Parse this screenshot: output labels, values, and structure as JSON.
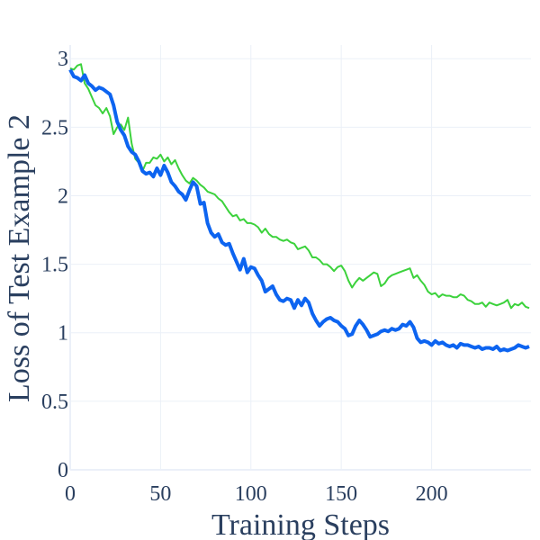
{
  "chart_data": {
    "type": "line",
    "title": "",
    "xlabel": "Training Steps",
    "ylabel": "Loss of Test Example 2",
    "xlim": [
      0,
      255
    ],
    "ylim": [
      0,
      3.1
    ],
    "xticks": [
      0,
      50,
      100,
      150,
      200
    ],
    "xtick_labels": [
      "0",
      "50",
      "100",
      "150",
      "200"
    ],
    "yticks": [
      0,
      0.5,
      1,
      1.5,
      2,
      2.5,
      3
    ],
    "ytick_labels": [
      "0",
      "0.5",
      "1",
      "1.5",
      "2",
      "2.5",
      "3"
    ],
    "grid": true,
    "series": [
      {
        "name": "green",
        "color": "#3cd23c",
        "x": [
          0,
          2,
          4,
          6,
          8,
          10,
          12,
          14,
          16,
          18,
          20,
          22,
          24,
          26,
          28,
          30,
          32,
          34,
          36,
          38,
          40,
          42,
          44,
          46,
          48,
          50,
          52,
          54,
          56,
          58,
          60,
          62,
          64,
          66,
          68,
          70,
          72,
          74,
          76,
          78,
          80,
          82,
          84,
          86,
          88,
          90,
          92,
          94,
          96,
          98,
          100,
          102,
          104,
          106,
          108,
          110,
          112,
          114,
          116,
          118,
          120,
          122,
          124,
          126,
          128,
          130,
          132,
          134,
          136,
          138,
          140,
          142,
          144,
          146,
          148,
          150,
          152,
          154,
          156,
          158,
          160,
          162,
          164,
          166,
          168,
          170,
          172,
          174,
          176,
          178,
          180,
          182,
          184,
          186,
          188,
          190,
          192,
          194,
          196,
          198,
          200,
          202,
          204,
          206,
          208,
          210,
          212,
          214,
          216,
          218,
          220,
          222,
          224,
          226,
          228,
          230,
          232,
          234,
          236,
          238,
          240,
          242,
          244,
          246,
          248,
          250,
          252,
          254
        ],
        "values": [
          2.93,
          2.92,
          2.95,
          2.96,
          2.82,
          2.78,
          2.72,
          2.66,
          2.64,
          2.6,
          2.64,
          2.58,
          2.45,
          2.5,
          2.52,
          2.48,
          2.57,
          2.38,
          2.27,
          2.24,
          2.18,
          2.24,
          2.24,
          2.28,
          2.27,
          2.3,
          2.25,
          2.28,
          2.23,
          2.26,
          2.2,
          2.15,
          2.11,
          2.09,
          2.13,
          2.11,
          2.08,
          2.06,
          2.03,
          2.02,
          2.01,
          1.98,
          1.96,
          1.92,
          1.88,
          1.85,
          1.86,
          1.82,
          1.83,
          1.8,
          1.8,
          1.79,
          1.77,
          1.73,
          1.76,
          1.72,
          1.7,
          1.7,
          1.68,
          1.67,
          1.68,
          1.66,
          1.65,
          1.61,
          1.62,
          1.63,
          1.6,
          1.55,
          1.55,
          1.53,
          1.5,
          1.5,
          1.48,
          1.45,
          1.48,
          1.49,
          1.45,
          1.38,
          1.33,
          1.37,
          1.4,
          1.38,
          1.4,
          1.42,
          1.44,
          1.43,
          1.34,
          1.36,
          1.4,
          1.42,
          1.43,
          1.44,
          1.45,
          1.46,
          1.47,
          1.4,
          1.42,
          1.38,
          1.35,
          1.3,
          1.28,
          1.29,
          1.26,
          1.28,
          1.27,
          1.27,
          1.26,
          1.26,
          1.28,
          1.27,
          1.24,
          1.23,
          1.21,
          1.21,
          1.22,
          1.19,
          1.22,
          1.21,
          1.2,
          1.21,
          1.22,
          1.24,
          1.18,
          1.21,
          1.2,
          1.22,
          1.19,
          1.18
        ]
      },
      {
        "name": "blue",
        "color": "#0d64f0",
        "x": [
          0,
          2,
          4,
          6,
          8,
          10,
          12,
          14,
          16,
          18,
          20,
          22,
          24,
          26,
          28,
          30,
          32,
          34,
          36,
          38,
          40,
          42,
          44,
          46,
          48,
          50,
          52,
          54,
          56,
          58,
          60,
          62,
          64,
          66,
          68,
          70,
          72,
          74,
          76,
          78,
          80,
          82,
          84,
          86,
          88,
          90,
          92,
          94,
          96,
          98,
          100,
          102,
          104,
          106,
          108,
          110,
          112,
          114,
          116,
          118,
          120,
          122,
          124,
          126,
          128,
          130,
          132,
          134,
          136,
          138,
          140,
          142,
          144,
          146,
          148,
          150,
          152,
          154,
          156,
          158,
          160,
          162,
          164,
          166,
          168,
          170,
          172,
          174,
          176,
          178,
          180,
          182,
          184,
          186,
          188,
          190,
          192,
          194,
          196,
          198,
          200,
          202,
          204,
          206,
          208,
          210,
          212,
          214,
          216,
          218,
          220,
          222,
          224,
          226,
          228,
          230,
          232,
          234,
          236,
          238,
          240,
          242,
          244,
          246,
          248,
          250,
          252,
          254
        ],
        "values": [
          2.92,
          2.87,
          2.86,
          2.84,
          2.88,
          2.82,
          2.8,
          2.77,
          2.79,
          2.78,
          2.76,
          2.74,
          2.66,
          2.54,
          2.48,
          2.44,
          2.36,
          2.32,
          2.3,
          2.25,
          2.18,
          2.16,
          2.17,
          2.14,
          2.2,
          2.15,
          2.22,
          2.17,
          2.1,
          2.07,
          2.03,
          2.01,
          1.97,
          2.04,
          2.1,
          2.07,
          1.94,
          1.95,
          1.8,
          1.73,
          1.7,
          1.72,
          1.66,
          1.64,
          1.65,
          1.58,
          1.52,
          1.46,
          1.54,
          1.44,
          1.48,
          1.47,
          1.42,
          1.38,
          1.3,
          1.32,
          1.34,
          1.28,
          1.24,
          1.23,
          1.25,
          1.24,
          1.18,
          1.24,
          1.2,
          1.25,
          1.22,
          1.14,
          1.09,
          1.05,
          1.08,
          1.1,
          1.11,
          1.09,
          1.08,
          1.05,
          1.03,
          0.98,
          0.99,
          1.05,
          1.09,
          1.06,
          1.02,
          0.97,
          0.98,
          0.99,
          1.01,
          1.02,
          1.01,
          1.03,
          1.02,
          1.03,
          1.06,
          1.05,
          1.08,
          1.04,
          0.96,
          0.93,
          0.94,
          0.93,
          0.91,
          0.94,
          0.92,
          0.93,
          0.91,
          0.9,
          0.91,
          0.89,
          0.92,
          0.91,
          0.91,
          0.9,
          0.89,
          0.9,
          0.88,
          0.89,
          0.89,
          0.88,
          0.9,
          0.87,
          0.88,
          0.87,
          0.88,
          0.89,
          0.91,
          0.9,
          0.89,
          0.9
        ]
      }
    ]
  }
}
